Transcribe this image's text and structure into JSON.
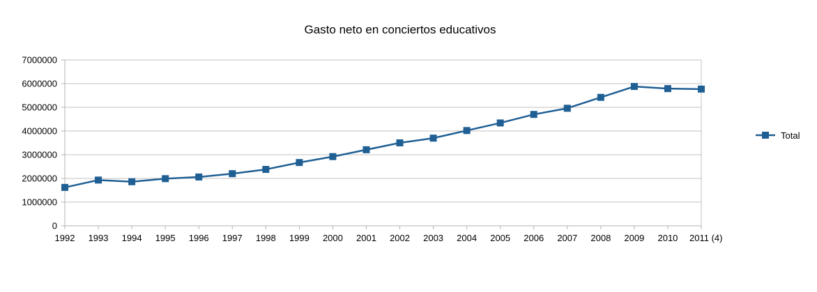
{
  "colors": {
    "series": "#1f5f94",
    "grid": "#c0c0c0",
    "axis": "#b3b3b3"
  },
  "chart_data": {
    "type": "line",
    "title": "Gasto neto en conciertos educativos",
    "xlabel": "",
    "ylabel": "",
    "categories": [
      "1992",
      "1993",
      "1994",
      "1995",
      "1996",
      "1997",
      "1998",
      "1999",
      "2000",
      "2001",
      "2002",
      "2003",
      "2004",
      "2005",
      "2006",
      "2007",
      "2008",
      "2009",
      "2010",
      "2011 (4)"
    ],
    "ylim": [
      0,
      7000000
    ],
    "yticks": [
      "0",
      "1000000",
      "2000000",
      "3000000",
      "4000000",
      "5000000",
      "6000000",
      "7000000"
    ],
    "grid": true,
    "legend_position": "right",
    "marker": "square",
    "series": [
      {
        "name": "Total",
        "values": [
          1620000,
          1930000,
          1860000,
          1990000,
          2060000,
          2200000,
          2380000,
          2670000,
          2920000,
          3210000,
          3500000,
          3700000,
          4020000,
          4340000,
          4700000,
          4960000,
          5420000,
          5880000,
          5790000,
          5770000
        ]
      }
    ]
  }
}
